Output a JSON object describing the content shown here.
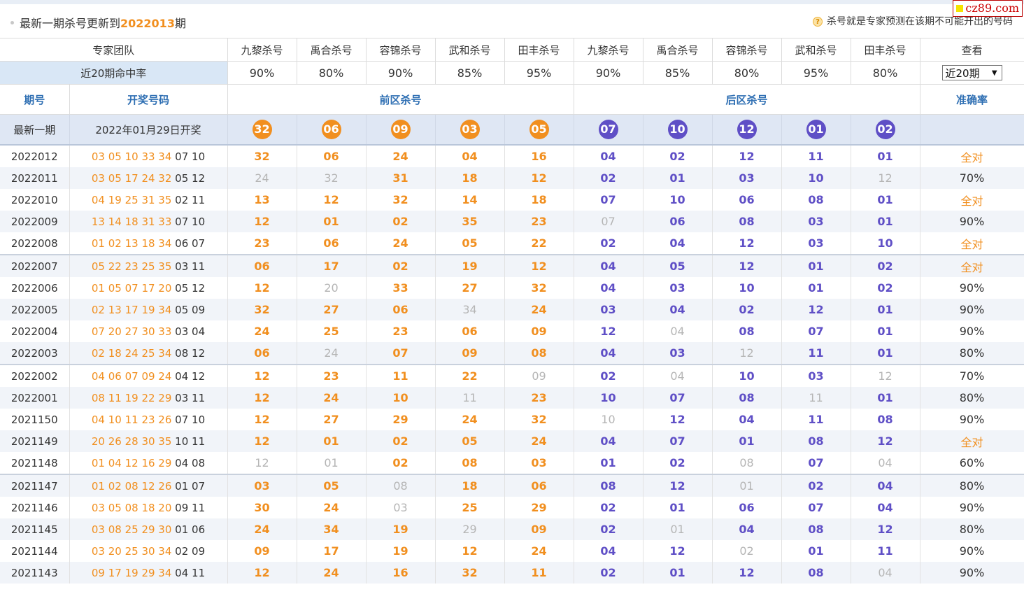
{
  "watermark": "cz89.com",
  "header": {
    "title_prefix": "最新一期杀号更新到",
    "issue": "2022013",
    "title_suffix": "期",
    "note": "杀号就是专家预测在该期不可能开出的号码"
  },
  "experts_row": {
    "label": "专家团队",
    "names": [
      "九黎杀号",
      "禹合杀号",
      "容锦杀号",
      "武和杀号",
      "田丰杀号",
      "九黎杀号",
      "禹合杀号",
      "容锦杀号",
      "武和杀号",
      "田丰杀号"
    ],
    "view_label": "查看"
  },
  "rate_row": {
    "label": "近20期命中率",
    "rates": [
      "90%",
      "80%",
      "90%",
      "85%",
      "95%",
      "90%",
      "85%",
      "80%",
      "95%",
      "80%"
    ],
    "select_value": "近20期"
  },
  "section_row": {
    "issue": "期号",
    "draw": "开奖号码",
    "front": "前区杀号",
    "back": "后区杀号",
    "accuracy": "准确率"
  },
  "latest": {
    "label": "最新一期",
    "date": "2022年01月29日开奖",
    "front": [
      "32",
      "06",
      "09",
      "03",
      "05"
    ],
    "back": [
      "07",
      "10",
      "12",
      "01",
      "02"
    ]
  },
  "colors": {
    "front": "#f18f1f",
    "back": "#5f4fc6",
    "miss": "#b5b5b5",
    "header_text": "#2f6fb3"
  },
  "rows": [
    {
      "issue": "2022012",
      "draw_front": "03 05 10 33 34",
      "draw_back": "07 10",
      "front": [
        "32",
        "06",
        "24",
        "04",
        "16"
      ],
      "back": [
        "04",
        "02",
        "12",
        "11",
        "01"
      ],
      "front_miss": [],
      "back_miss": [],
      "accuracy": "全对"
    },
    {
      "issue": "2022011",
      "draw_front": "03 05 17 24 32",
      "draw_back": "05 12",
      "front": [
        "24",
        "32",
        "31",
        "18",
        "12"
      ],
      "back": [
        "02",
        "01",
        "03",
        "10",
        "12"
      ],
      "front_miss": [
        0,
        1
      ],
      "back_miss": [
        4
      ],
      "accuracy": "70%"
    },
    {
      "issue": "2022010",
      "draw_front": "04 19 25 31 35",
      "draw_back": "02 11",
      "front": [
        "13",
        "12",
        "32",
        "14",
        "18"
      ],
      "back": [
        "07",
        "10",
        "06",
        "08",
        "01"
      ],
      "front_miss": [],
      "back_miss": [],
      "accuracy": "全对"
    },
    {
      "issue": "2022009",
      "draw_front": "13 14 18 31 33",
      "draw_back": "07 10",
      "front": [
        "12",
        "01",
        "02",
        "35",
        "23"
      ],
      "back": [
        "07",
        "06",
        "08",
        "03",
        "01"
      ],
      "front_miss": [],
      "back_miss": [
        0
      ],
      "accuracy": "90%"
    },
    {
      "issue": "2022008",
      "draw_front": "01 02 13 18 34",
      "draw_back": "06 07",
      "front": [
        "23",
        "06",
        "24",
        "05",
        "22"
      ],
      "back": [
        "02",
        "04",
        "12",
        "03",
        "10"
      ],
      "front_miss": [],
      "back_miss": [],
      "accuracy": "全对"
    },
    {
      "issue": "2022007",
      "draw_front": "05 22 23 25 35",
      "draw_back": "03 11",
      "front": [
        "06",
        "17",
        "02",
        "19",
        "12"
      ],
      "back": [
        "04",
        "05",
        "12",
        "01",
        "02"
      ],
      "front_miss": [],
      "back_miss": [],
      "accuracy": "全对"
    },
    {
      "issue": "2022006",
      "draw_front": "01 05 07 17 20",
      "draw_back": "05 12",
      "front": [
        "12",
        "20",
        "33",
        "27",
        "32"
      ],
      "back": [
        "04",
        "03",
        "10",
        "01",
        "02"
      ],
      "front_miss": [
        1
      ],
      "back_miss": [],
      "accuracy": "90%"
    },
    {
      "issue": "2022005",
      "draw_front": "02 13 17 19 34",
      "draw_back": "05 09",
      "front": [
        "32",
        "27",
        "06",
        "34",
        "24"
      ],
      "back": [
        "03",
        "04",
        "02",
        "12",
        "01"
      ],
      "front_miss": [
        3
      ],
      "back_miss": [],
      "accuracy": "90%"
    },
    {
      "issue": "2022004",
      "draw_front": "07 20 27 30 33",
      "draw_back": "03 04",
      "front": [
        "24",
        "25",
        "23",
        "06",
        "09"
      ],
      "back": [
        "12",
        "04",
        "08",
        "07",
        "01"
      ],
      "front_miss": [],
      "back_miss": [
        1
      ],
      "accuracy": "90%"
    },
    {
      "issue": "2022003",
      "draw_front": "02 18 24 25 34",
      "draw_back": "08 12",
      "front": [
        "06",
        "24",
        "07",
        "09",
        "08"
      ],
      "back": [
        "04",
        "03",
        "12",
        "11",
        "01"
      ],
      "front_miss": [
        1
      ],
      "back_miss": [
        2
      ],
      "accuracy": "80%"
    },
    {
      "issue": "2022002",
      "draw_front": "04 06 07 09 24",
      "draw_back": "04 12",
      "front": [
        "12",
        "23",
        "11",
        "22",
        "09"
      ],
      "back": [
        "02",
        "04",
        "10",
        "03",
        "12"
      ],
      "front_miss": [
        4
      ],
      "back_miss": [
        1,
        4
      ],
      "accuracy": "70%"
    },
    {
      "issue": "2022001",
      "draw_front": "08 11 19 22 29",
      "draw_back": "03 11",
      "front": [
        "12",
        "24",
        "10",
        "11",
        "23"
      ],
      "back": [
        "10",
        "07",
        "08",
        "11",
        "01"
      ],
      "front_miss": [
        3
      ],
      "back_miss": [
        3
      ],
      "accuracy": "80%"
    },
    {
      "issue": "2021150",
      "draw_front": "04 10 11 23 26",
      "draw_back": "07 10",
      "front": [
        "12",
        "27",
        "29",
        "24",
        "32"
      ],
      "back": [
        "10",
        "12",
        "04",
        "11",
        "08"
      ],
      "front_miss": [],
      "back_miss": [
        0
      ],
      "accuracy": "90%"
    },
    {
      "issue": "2021149",
      "draw_front": "20 26 28 30 35",
      "draw_back": "10 11",
      "front": [
        "12",
        "01",
        "02",
        "05",
        "24"
      ],
      "back": [
        "04",
        "07",
        "01",
        "08",
        "12"
      ],
      "front_miss": [],
      "back_miss": [],
      "accuracy": "全对"
    },
    {
      "issue": "2021148",
      "draw_front": "01 04 12 16 29",
      "draw_back": "04 08",
      "front": [
        "12",
        "01",
        "02",
        "08",
        "03"
      ],
      "back": [
        "01",
        "02",
        "08",
        "07",
        "04"
      ],
      "front_miss": [
        0,
        1
      ],
      "back_miss": [
        2,
        4
      ],
      "accuracy": "60%"
    },
    {
      "issue": "2021147",
      "draw_front": "01 02 08 12 26",
      "draw_back": "01 07",
      "front": [
        "03",
        "05",
        "08",
        "18",
        "06"
      ],
      "back": [
        "08",
        "12",
        "01",
        "02",
        "04"
      ],
      "front_miss": [
        2
      ],
      "back_miss": [
        2
      ],
      "accuracy": "80%"
    },
    {
      "issue": "2021146",
      "draw_front": "03 05 08 18 20",
      "draw_back": "09 11",
      "front": [
        "30",
        "24",
        "03",
        "25",
        "29"
      ],
      "back": [
        "02",
        "01",
        "06",
        "07",
        "04"
      ],
      "front_miss": [
        2
      ],
      "back_miss": [],
      "accuracy": "90%"
    },
    {
      "issue": "2021145",
      "draw_front": "03 08 25 29 30",
      "draw_back": "01 06",
      "front": [
        "24",
        "34",
        "19",
        "29",
        "09"
      ],
      "back": [
        "02",
        "01",
        "04",
        "08",
        "12"
      ],
      "front_miss": [
        3
      ],
      "back_miss": [
        1
      ],
      "accuracy": "80%"
    },
    {
      "issue": "2021144",
      "draw_front": "03 20 25 30 34",
      "draw_back": "02 09",
      "front": [
        "09",
        "17",
        "19",
        "12",
        "24"
      ],
      "back": [
        "04",
        "12",
        "02",
        "01",
        "11"
      ],
      "front_miss": [],
      "back_miss": [
        2
      ],
      "accuracy": "90%"
    },
    {
      "issue": "2021143",
      "draw_front": "09 17 19 29 34",
      "draw_back": "04 11",
      "front": [
        "12",
        "24",
        "16",
        "32",
        "11"
      ],
      "back": [
        "02",
        "01",
        "12",
        "08",
        "04"
      ],
      "front_miss": [],
      "back_miss": [
        4
      ],
      "accuracy": "90%"
    }
  ]
}
